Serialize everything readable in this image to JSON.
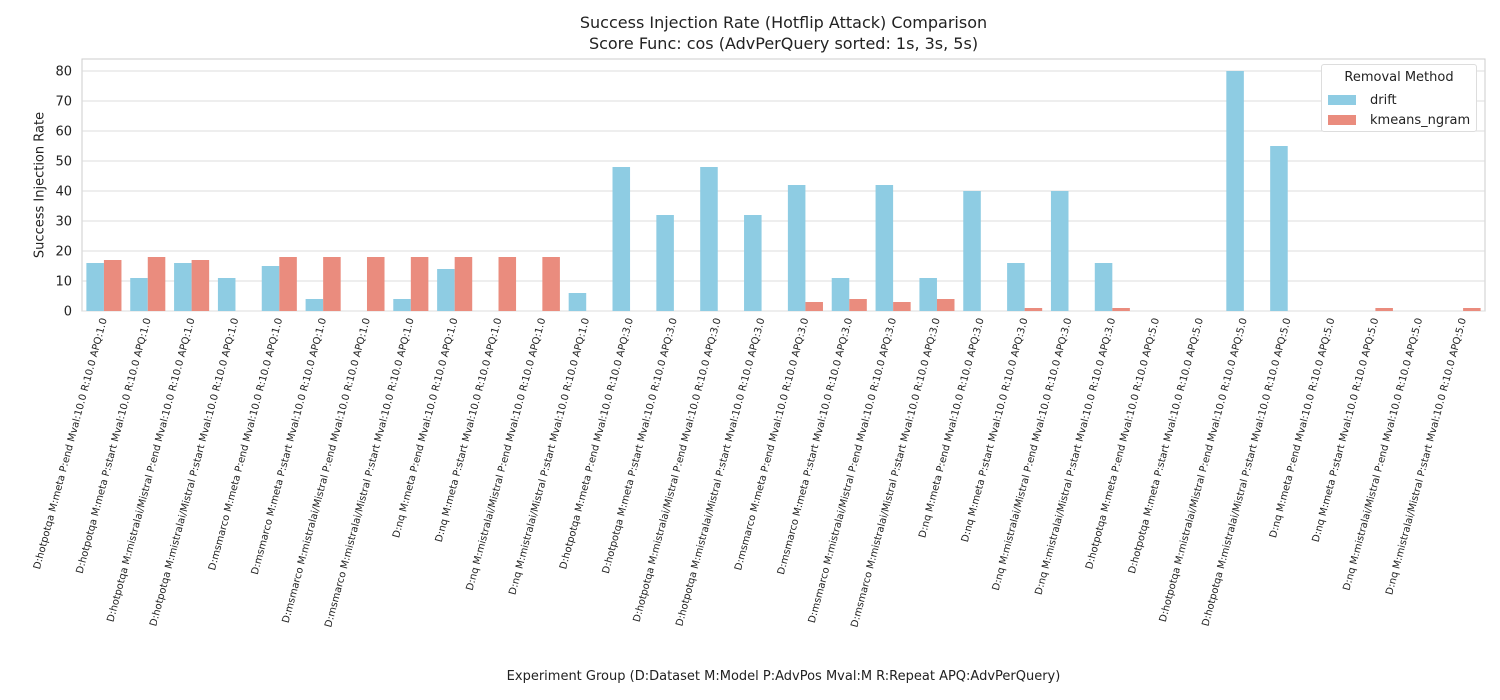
{
  "chart_data": {
    "type": "bar",
    "title": "Success Injection Rate (Hotflip Attack) Comparison",
    "subtitle": "Score Func: cos (AdvPerQuery sorted: 1s, 3s, 5s)",
    "xlabel": "Experiment Group (D:Dataset M:Model P:AdvPos Mval:M R:Repeat APQ:AdvPerQuery)",
    "ylabel": "Success Injection Rate",
    "ylim": [
      0,
      84
    ],
    "yticks": [
      0,
      10,
      20,
      30,
      40,
      50,
      60,
      70,
      80
    ],
    "grid": true,
    "legend": {
      "title": "Removal Method",
      "placement": "top-right"
    },
    "categories": [
      "D:hotpotqa M:meta P:end Mval:10.0 R:10.0 APQ:1.0",
      "D:hotpotqa M:meta P:start Mval:10.0 R:10.0 APQ:1.0",
      "D:hotpotqa M:mistralai/Mistral P:end Mval:10.0 R:10.0 APQ:1.0",
      "D:hotpotqa M:mistralai/Mistral P:start Mval:10.0 R:10.0 APQ:1.0",
      "D:msmarco M:meta P:end Mval:10.0 R:10.0 APQ:1.0",
      "D:msmarco M:meta P:start Mval:10.0 R:10.0 APQ:1.0",
      "D:msmarco M:mistralai/Mistral P:end Mval:10.0 R:10.0 APQ:1.0",
      "D:msmarco M:mistralai/Mistral P:start Mval:10.0 R:10.0 APQ:1.0",
      "D:nq M:meta P:end Mval:10.0 R:10.0 APQ:1.0",
      "D:nq M:meta P:start Mval:10.0 R:10.0 APQ:1.0",
      "D:nq M:mistralai/Mistral P:end Mval:10.0 R:10.0 APQ:1.0",
      "D:nq M:mistralai/Mistral P:start Mval:10.0 R:10.0 APQ:1.0",
      "D:hotpotqa M:meta P:end Mval:10.0 R:10.0 APQ:3.0",
      "D:hotpotqa M:meta P:start Mval:10.0 R:10.0 APQ:3.0",
      "D:hotpotqa M:mistralai/Mistral P:end Mval:10.0 R:10.0 APQ:3.0",
      "D:hotpotqa M:mistralai/Mistral P:start Mval:10.0 R:10.0 APQ:3.0",
      "D:msmarco M:meta P:end Mval:10.0 R:10.0 APQ:3.0",
      "D:msmarco M:meta P:start Mval:10.0 R:10.0 APQ:3.0",
      "D:msmarco M:mistralai/Mistral P:end Mval:10.0 R:10.0 APQ:3.0",
      "D:msmarco M:mistralai/Mistral P:start Mval:10.0 R:10.0 APQ:3.0",
      "D:nq M:meta P:end Mval:10.0 R:10.0 APQ:3.0",
      "D:nq M:meta P:start Mval:10.0 R:10.0 APQ:3.0",
      "D:nq M:mistralai/Mistral P:end Mval:10.0 R:10.0 APQ:3.0",
      "D:nq M:mistralai/Mistral P:start Mval:10.0 R:10.0 APQ:3.0",
      "D:hotpotqa M:meta P:end Mval:10.0 R:10.0 APQ:5.0",
      "D:hotpotqa M:meta P:start Mval:10.0 R:10.0 APQ:5.0",
      "D:hotpotqa M:mistralai/Mistral P:end Mval:10.0 R:10.0 APQ:5.0",
      "D:hotpotqa M:mistralai/Mistral P:start Mval:10.0 R:10.0 APQ:5.0",
      "D:nq M:meta P:end Mval:10.0 R:10.0 APQ:5.0",
      "D:nq M:meta P:start Mval:10.0 R:10.0 APQ:5.0",
      "D:nq M:mistralai/Mistral P:end Mval:10.0 R:10.0 APQ:5.0",
      "D:nq M:mistralai/Mistral P:start Mval:10.0 R:10.0 APQ:5.0"
    ],
    "series": [
      {
        "name": "drift",
        "color": "#8ecce3",
        "values": [
          16,
          11,
          16,
          11,
          15,
          4,
          0,
          4,
          14,
          0,
          0,
          6,
          48,
          32,
          48,
          32,
          42,
          11,
          42,
          11,
          40,
          16,
          40,
          16,
          0,
          0,
          80,
          55,
          0,
          0,
          0,
          0
        ]
      },
      {
        "name": "kmeans_ngram",
        "color": "#ea8c7e",
        "values": [
          17,
          18,
          17,
          0,
          18,
          18,
          18,
          18,
          18,
          18,
          18,
          0,
          0,
          0,
          0,
          0,
          3,
          4,
          3,
          4,
          0,
          1,
          0,
          1,
          0,
          0,
          0,
          0,
          0,
          1,
          0,
          1
        ]
      }
    ]
  }
}
